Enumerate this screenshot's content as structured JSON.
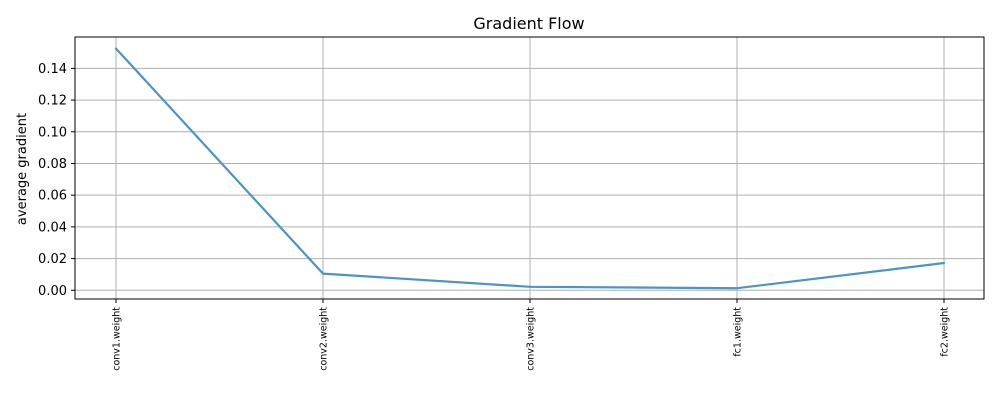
{
  "chart_data": {
    "type": "line",
    "title": "Gradient Flow",
    "xlabel": "",
    "ylabel": "average gradient",
    "categories": [
      "conv1.weight",
      "conv2.weight",
      "conv3.weight",
      "fc1.weight",
      "fc2.weight"
    ],
    "values": [
      0.1525,
      0.0105,
      0.0022,
      0.0013,
      0.0172
    ],
    "ylim": [
      -0.0055,
      0.1598
    ],
    "yticks": [
      "0.00",
      "0.02",
      "0.04",
      "0.06",
      "0.08",
      "0.10",
      "0.12",
      "0.14"
    ],
    "ytick_values": [
      0.0,
      0.02,
      0.04,
      0.06,
      0.08,
      0.1,
      0.12,
      0.14
    ],
    "grid": true,
    "line_color": "#4c94c4"
  }
}
